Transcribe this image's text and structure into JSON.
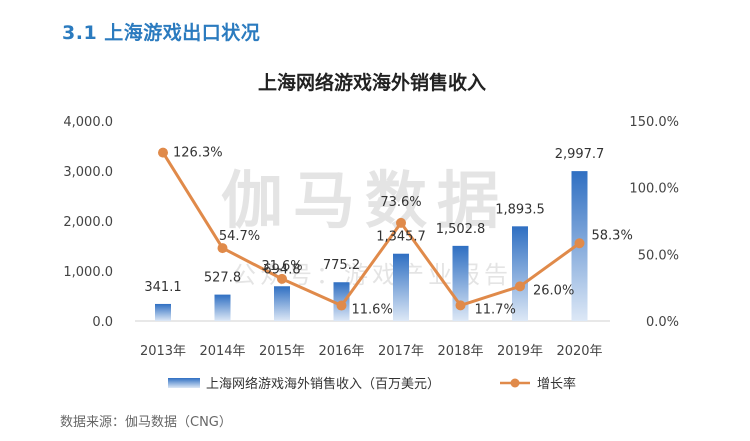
{
  "section_title": "3.1  上海游戏出口状况",
  "source_note": "数据来源：伽马数据（CNG）",
  "watermark": {
    "main": "伽马数据",
    "sub": "公众号：游戏产业报告"
  },
  "colors": {
    "bar_top": "#2f6fc2",
    "bar_bottom": "#dde8f6",
    "line": "#e08a4a"
  },
  "chart_data": {
    "type": "bar+line",
    "title": "上海网络游戏海外销售收入",
    "categories": [
      "2013年",
      "2014年",
      "2015年",
      "2016年",
      "2017年",
      "2018年",
      "2019年",
      "2020年"
    ],
    "series": [
      {
        "name": "上海网络游戏海外销售收入（百万美元）",
        "type": "bar",
        "axis": "left",
        "values": [
          341.1,
          527.8,
          694.8,
          775.2,
          1345.7,
          1502.8,
          1893.5,
          2997.7
        ],
        "labels": [
          "341.1",
          "527.8",
          "694.8",
          "775.2",
          "1,345.7",
          "1,502.8",
          "1,893.5",
          "2,997.7"
        ]
      },
      {
        "name": "增长率",
        "type": "line",
        "axis": "right",
        "values": [
          126.3,
          54.7,
          31.6,
          11.6,
          73.6,
          11.7,
          26.0,
          58.3
        ],
        "labels": [
          "126.3%",
          "54.7%",
          "31.6%",
          "11.6%",
          "73.6%",
          "11.7%",
          "26.0%",
          "58.3%"
        ]
      }
    ],
    "left_axis": {
      "ylim": [
        0,
        4000
      ],
      "ticks": [
        "0.0",
        "1,000.0",
        "2,000.0",
        "3,000.0",
        "4,000.0"
      ]
    },
    "right_axis": {
      "ylim": [
        0,
        150
      ],
      "ticks": [
        "0.0%",
        "50.0%",
        "100.0%",
        "150.0%"
      ]
    },
    "grid": false,
    "legend": "bottom"
  }
}
